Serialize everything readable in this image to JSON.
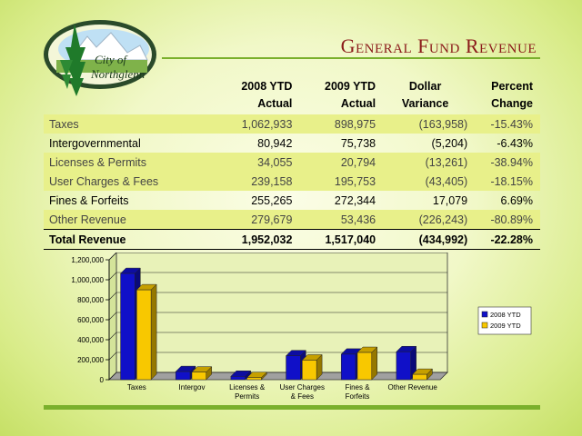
{
  "header": {
    "title": "General Fund Revenue",
    "logo_text_line1": "City of",
    "logo_text_line2": "Northglenn"
  },
  "table": {
    "columns": [
      {
        "line1": "",
        "line2": ""
      },
      {
        "line1": "2008 YTD",
        "line2": "Actual"
      },
      {
        "line1": "2009 YTD",
        "line2": "Actual"
      },
      {
        "line1": "Dollar",
        "line2": "Variance"
      },
      {
        "line1": "Percent",
        "line2": "Change"
      }
    ],
    "rows": [
      {
        "label": "Taxes",
        "y2008": "1,062,933",
        "y2009": "898,975",
        "variance": "(163,958)",
        "pct": "-15.43%"
      },
      {
        "label": "Intergovernmental",
        "y2008": "80,942",
        "y2009": "75,738",
        "variance": "(5,204)",
        "pct": "-6.43%"
      },
      {
        "label": "Licenses & Permits",
        "y2008": "34,055",
        "y2009": "20,794",
        "variance": "(13,261)",
        "pct": "-38.94%"
      },
      {
        "label": "User Charges & Fees",
        "y2008": "239,158",
        "y2009": "195,753",
        "variance": "(43,405)",
        "pct": "-18.15%"
      },
      {
        "label": "Fines & Forfeits",
        "y2008": "255,265",
        "y2009": "272,344",
        "variance": "17,079",
        "pct": "6.69%"
      },
      {
        "label": "Other Revenue",
        "y2008": "279,679",
        "y2009": "53,436",
        "variance": "(226,243)",
        "pct": "-80.89%"
      }
    ],
    "total": {
      "label": "Total Revenue",
      "y2008": "1,952,032",
      "y2009": "1,517,040",
      "variance": "(434,992)",
      "pct": "-22.28%"
    }
  },
  "chart_data": {
    "type": "bar",
    "categories": [
      [
        "Taxes"
      ],
      [
        "Intergov"
      ],
      [
        "Licenses &",
        "Permits"
      ],
      [
        "User Charges",
        "& Fees"
      ],
      [
        "Fines &",
        "Forfeits"
      ],
      [
        "Other Revenue"
      ]
    ],
    "series": [
      {
        "name": "2008 YTD",
        "color": "#1010c8",
        "values": [
          1062933,
          80942,
          34055,
          239158,
          255265,
          279679
        ]
      },
      {
        "name": "2009 YTD",
        "color": "#f8c800",
        "values": [
          898975,
          75738,
          20794,
          195753,
          272344,
          53436
        ]
      }
    ],
    "ylim": [
      0,
      1200000
    ],
    "yticks": [
      "0",
      "200,000",
      "400,000",
      "600,000",
      "800,000",
      "1,000,000",
      "1,200,000"
    ],
    "ytick_values": [
      0,
      200000,
      400000,
      600000,
      800000,
      1000000,
      1200000
    ],
    "grid": true,
    "legend": "right"
  }
}
